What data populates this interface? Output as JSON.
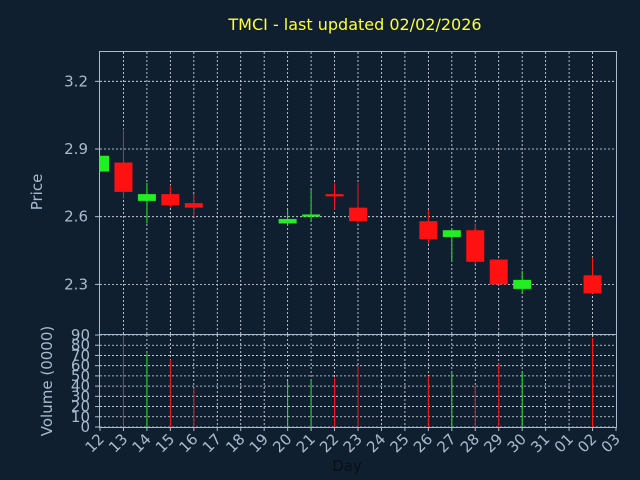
{
  "colors": {
    "background": "#0f1f30",
    "up": "#22ee22",
    "down": "#ff1111",
    "title": "#ffff33",
    "axis_text": "#a9bccf",
    "grid": "#dfe6ee"
  },
  "chart_data": [
    {
      "type": "candlestick",
      "title": "TMCI - last updated 02/02/2026",
      "ylabel": "Price",
      "ylim": [
        2.08,
        3.33
      ],
      "yticks": [
        "2.3",
        "2.6",
        "2.9",
        "3.2"
      ],
      "ytick_values": [
        2.3,
        2.6,
        2.9,
        3.2
      ],
      "grid": true,
      "categories": [
        "12",
        "13",
        "14",
        "15",
        "16",
        "17",
        "18",
        "19",
        "20",
        "21",
        "22",
        "23",
        "24",
        "25",
        "26",
        "27",
        "28",
        "29",
        "30",
        "31",
        "01",
        "02",
        "03"
      ],
      "candles": [
        {
          "day": "12",
          "open": 2.8,
          "high": 2.87,
          "low": 2.8,
          "close": 2.87
        },
        {
          "day": "13",
          "open": 2.84,
          "high": 2.99,
          "low": 2.68,
          "close": 2.71
        },
        {
          "day": "14",
          "open": 2.67,
          "high": 2.75,
          "low": 2.57,
          "close": 2.7
        },
        {
          "day": "15",
          "open": 2.7,
          "high": 2.74,
          "low": 2.64,
          "close": 2.65
        },
        {
          "day": "16",
          "open": 2.66,
          "high": 2.7,
          "low": 2.6,
          "close": 2.64
        },
        {
          "day": "20",
          "open": 2.57,
          "high": 2.63,
          "low": 2.56,
          "close": 2.59
        },
        {
          "day": "21",
          "open": 2.6,
          "high": 2.72,
          "low": 2.58,
          "close": 2.61
        },
        {
          "day": "22",
          "open": 2.7,
          "high": 2.75,
          "low": 2.63,
          "close": 2.69
        },
        {
          "day": "23",
          "open": 2.64,
          "high": 2.75,
          "low": 2.57,
          "close": 2.58
        },
        {
          "day": "26",
          "open": 2.58,
          "high": 2.63,
          "low": 2.48,
          "close": 2.5
        },
        {
          "day": "27",
          "open": 2.51,
          "high": 2.55,
          "low": 2.4,
          "close": 2.54
        },
        {
          "day": "28",
          "open": 2.54,
          "high": 2.57,
          "low": 2.39,
          "close": 2.4
        },
        {
          "day": "29",
          "open": 2.41,
          "high": 2.41,
          "low": 2.3,
          "close": 2.3
        },
        {
          "day": "30",
          "open": 2.28,
          "high": 2.36,
          "low": 2.26,
          "close": 2.32
        },
        {
          "day": "02",
          "open": 2.34,
          "high": 2.42,
          "low": 2.26,
          "close": 2.26
        }
      ]
    },
    {
      "type": "bar",
      "ylabel": "Volume (0000)",
      "xlabel": "Day",
      "ylim": [
        0,
        90
      ],
      "yticks": [
        "0",
        "10",
        "20",
        "30",
        "40",
        "50",
        "60",
        "70",
        "80",
        "90"
      ],
      "ytick_values": [
        0,
        10,
        20,
        30,
        40,
        50,
        60,
        70,
        80,
        90
      ],
      "grid": true,
      "categories": [
        "12",
        "13",
        "14",
        "15",
        "16",
        "17",
        "18",
        "19",
        "20",
        "21",
        "22",
        "23",
        "24",
        "25",
        "26",
        "27",
        "28",
        "29",
        "30",
        "31",
        "01",
        "02",
        "03"
      ],
      "bars": [
        {
          "day": "13",
          "value": 92,
          "dir": "down"
        },
        {
          "day": "14",
          "value": 72,
          "dir": "up"
        },
        {
          "day": "15",
          "value": 66,
          "dir": "down"
        },
        {
          "day": "16",
          "value": 38,
          "dir": "down"
        },
        {
          "day": "20",
          "value": 45,
          "dir": "up"
        },
        {
          "day": "21",
          "value": 46,
          "dir": "up"
        },
        {
          "day": "22",
          "value": 48,
          "dir": "down"
        },
        {
          "day": "23",
          "value": 60,
          "dir": "down"
        },
        {
          "day": "26",
          "value": 50,
          "dir": "down"
        },
        {
          "day": "27",
          "value": 54,
          "dir": "up"
        },
        {
          "day": "28",
          "value": 40,
          "dir": "down"
        },
        {
          "day": "29",
          "value": 62,
          "dir": "down"
        },
        {
          "day": "30",
          "value": 54,
          "dir": "up"
        },
        {
          "day": "02",
          "value": 87,
          "dir": "down"
        }
      ]
    }
  ]
}
